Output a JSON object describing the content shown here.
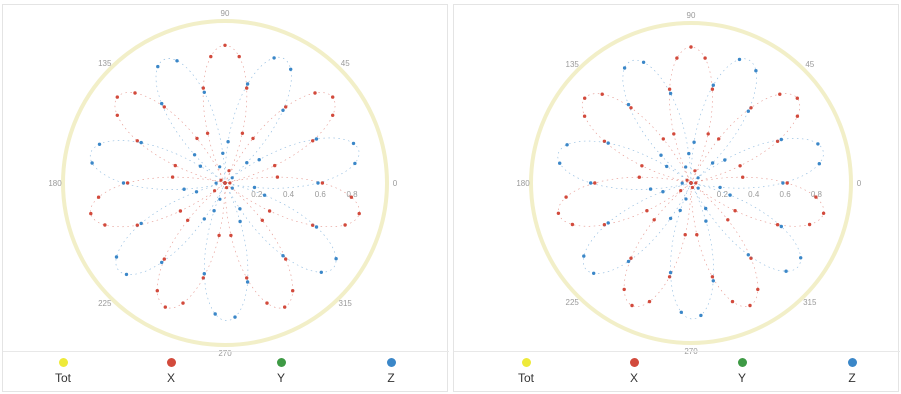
{
  "colors": {
    "Tot": "#eeea3a",
    "X": "#d24a3c",
    "Y": "#3e9a45",
    "Z": "#3b87c8",
    "outer_ring": "#f2efc8",
    "tick_text": "#9a9a9a"
  },
  "chart_data": [
    {
      "type": "polar-scatter",
      "angle_unit": "degrees",
      "angle_tick_labels": [
        "0",
        "45",
        "90",
        "135",
        "180",
        "225",
        "270",
        "315"
      ],
      "radial_tick_labels": [
        "0.2",
        "0.4",
        "0.6",
        "0.8"
      ],
      "radial_range": [
        0,
        1
      ],
      "legend": [
        "Tot",
        "X",
        "Y",
        "Z"
      ],
      "legend_position": "bottom",
      "series": [
        {
          "name": "Tot",
          "pattern": "ring",
          "r": 1.0,
          "petals": 0,
          "count": 0
        },
        {
          "name": "X",
          "pattern": "rose",
          "petals": 7,
          "r_max": 0.85,
          "count": 56,
          "phase_deg": 90
        },
        {
          "name": "Y",
          "pattern": "rose",
          "petals": 7,
          "r_max": 0.85,
          "count": 0,
          "phase_deg": 90
        },
        {
          "name": "Z",
          "pattern": "rose",
          "petals": 7,
          "r_max": 0.85,
          "count": 42,
          "phase_deg": 65
        }
      ]
    },
    {
      "type": "polar-scatter",
      "angle_unit": "degrees",
      "angle_tick_labels": [
        "0",
        "45",
        "90",
        "135",
        "180",
        "225",
        "270",
        "315"
      ],
      "radial_tick_labels": [
        "0.2",
        "0.4",
        "0.6",
        "0.8"
      ],
      "radial_range": [
        0,
        1
      ],
      "legend": [
        "Tot",
        "X",
        "Y",
        "Z"
      ],
      "legend_position": "bottom",
      "series": [
        {
          "name": "Tot",
          "pattern": "ring",
          "r": 1.0,
          "petals": 0,
          "count": 0
        },
        {
          "name": "X",
          "pattern": "rose",
          "petals": 7,
          "r_max": 0.85,
          "count": 56,
          "phase_deg": 90
        },
        {
          "name": "Y",
          "pattern": "rose",
          "petals": 7,
          "r_max": 0.85,
          "count": 0,
          "phase_deg": 90
        },
        {
          "name": "Z",
          "pattern": "rose",
          "petals": 7,
          "r_max": 0.85,
          "count": 42,
          "phase_deg": 65
        }
      ]
    }
  ]
}
